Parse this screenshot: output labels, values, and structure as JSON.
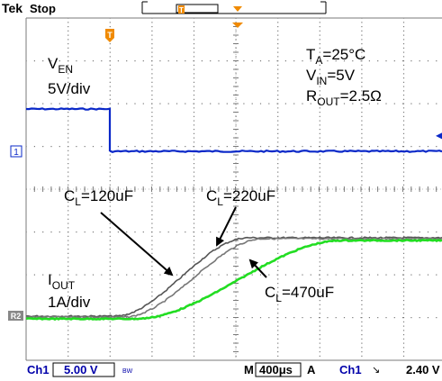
{
  "topbar": {
    "brand": "Tek",
    "state": "Stop",
    "trigger_marker": "T"
  },
  "markers": {
    "trigger_pos_marker": "T",
    "ch1_ground": "1",
    "ref2_ground": "R2",
    "ch1_trigger_level_arrow": "◀"
  },
  "annotations": {
    "temperature": {
      "main": "T",
      "sub": "A",
      "rest": "=25°C"
    },
    "vin": {
      "main": "V",
      "sub": "IN",
      "rest": "=5V"
    },
    "rout": {
      "main": "R",
      "sub": "OUT",
      "rest": "=2.5Ω"
    },
    "ven_label": {
      "main": "V",
      "sub": "EN"
    },
    "ven_scale": "5V/div",
    "iout_label": {
      "main": "I",
      "sub": "OUT"
    },
    "iout_scale": "1A/div",
    "cl120": {
      "main": "C",
      "sub": "L",
      "rest": "=120uF"
    },
    "cl220": {
      "main": "C",
      "sub": "L",
      "rest": "=220uF"
    },
    "cl470": {
      "main": "C",
      "sub": "L",
      "rest": "=470uF"
    }
  },
  "status_bar": {
    "ch1_label": "Ch1",
    "ch1_scale": "5.00 V",
    "bw_badge": "BW",
    "time_prefix": "M",
    "timebase": "400μs",
    "trig_prefix": "A",
    "trig_channel": "Ch1",
    "trig_slope": "↘",
    "trig_level": "2.40 V"
  },
  "colors": {
    "grid": "#7a7a7a",
    "ch1": "#0a28c8",
    "trace_gray": "#555555",
    "trace_green": "#22dd22",
    "marker_orange": "#f08a00",
    "text": "#000000"
  }
}
